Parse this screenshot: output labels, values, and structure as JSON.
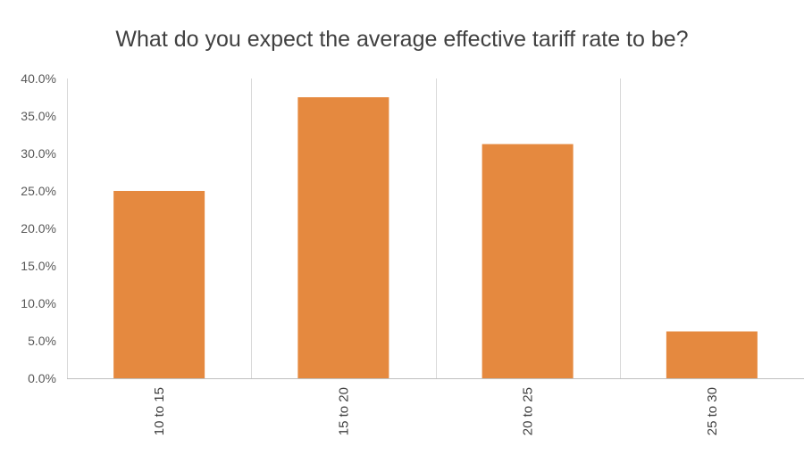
{
  "chart_data": {
    "type": "bar",
    "title": "What do you expect the average effective tariff rate to be?",
    "categories": [
      "10 to 15",
      "15 to 20",
      "20 to 25",
      "25 to 30"
    ],
    "values": [
      25.0,
      37.5,
      31.25,
      6.25
    ],
    "value_format": "percent",
    "ylim": [
      0,
      40
    ],
    "yticks": [
      "0.0%",
      "5.0%",
      "10.0%",
      "15.0%",
      "20.0%",
      "25.0%",
      "30.0%",
      "35.0%",
      "40.0%"
    ],
    "xlabel": "",
    "ylabel": "",
    "bar_color": "#E5893F",
    "grid": "vertical category separators",
    "legend": "none"
  }
}
